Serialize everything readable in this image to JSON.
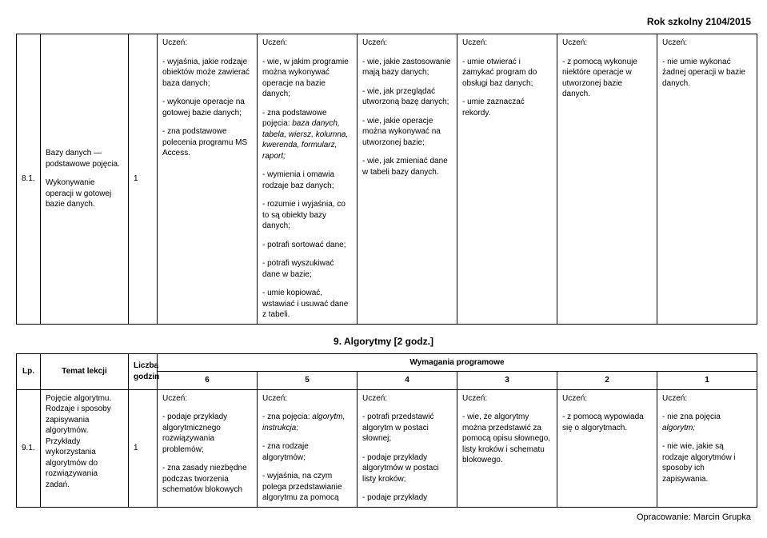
{
  "header": {
    "schoolYear": "Rok szkolny 2104/2015"
  },
  "labels": {
    "uczen": "Uczeń:",
    "lp": "Lp.",
    "temat": "Temat lekcji",
    "liczba": "Liczba godzin",
    "wymagania": "Wymagania programowe"
  },
  "section8": {
    "row": {
      "lp": "8.1.",
      "topic": "Bazy danych — podstawowe pojęcia.\nWykonywanie operacji w gotowej  bazie danych.",
      "hours": "1",
      "c6": {
        "p1": "- wyjaśnia, jakie rodzaje obiektów może zawierać baza danych;",
        "p2": "- wykonuje operacje na gotowej bazie danych;",
        "p3": "- zna podstawowe polecenia programu MS Access."
      },
      "c5": {
        "p1": "- wie, w jakim programie można wykonywać operacje na bazie danych;",
        "p2a": "- zna podstawowe pojęcia: ",
        "p2b": "baza danych, tabela, wiersz, kolumna, kwerenda, formularz, raport;",
        "p3": "- wymienia i omawia rodzaje baz danych;",
        "p4": "- rozumie i wyjaśnia, co to są obiekty bazy danych;",
        "p5": "- potrafi sortować dane;",
        "p6": "- potrafi wyszukiwać dane w bazie;",
        "p7": "- umie kopiować, wstawiać i usuwać dane z tabeli."
      },
      "c4": {
        "p1": "- wie, jakie zastosowanie mają bazy danych;",
        "p2": "- wie, jak przeglądać utworzoną bazę danych;",
        "p3": "- wie, jakie operacje można wykonywać na utworzonej bazie;",
        "p4": "- wie, jak zmieniać dane w tabeli bazy danych."
      },
      "c3": {
        "p1": "- umie otwierać i zamykać program do obsługi baz danych;",
        "p2": "- umie zaznaczać rekordy."
      },
      "c2": {
        "p1": "- z pomocą wykonuje niektóre operacje w utworzonej bazie danych."
      },
      "c1": {
        "p1": "- nie umie wykonać żadnej operacji w bazie danych."
      }
    }
  },
  "section9": {
    "title": "9. Algorytmy [2 godz.]",
    "gradeCols": {
      "g6": "6",
      "g5": "5",
      "g4": "4",
      "g3": "3",
      "g2": "2",
      "g1": "1"
    },
    "row": {
      "lp": "9.1.",
      "topic": "Pojęcie algorytmu. Rodzaje i sposoby zapisywania algorytmów. Przykłady wykorzystania algorytmów do rozwiązywania zadań.",
      "hours": "1",
      "c6": {
        "p1": "- podaje przykłady algorytmicznego rozwiązywania problemów;",
        "p2": "- zna zasady niezbędne podczas tworzenia schematów blokowych"
      },
      "c5": {
        "p1a": "- zna pojęcia: ",
        "p1b": "algorytm, instrukcja;",
        "p2": "- zna rodzaje algorytmów;",
        "p3": "- wyjaśnia, na czym polega przedstawianie algorytmu za pomocą"
      },
      "c4": {
        "p1": "- potrafi przedstawić algorytm w postaci słownej;",
        "p2": "- podaje przykłady algorytmów w postaci listy kroków;",
        "p3": "- podaje przykłady"
      },
      "c3": {
        "p1": "- wie, że algorytmy można przedstawić za pomocą opisu słownego, listy kroków i schematu blokowego."
      },
      "c2": {
        "p1": "- z pomocą wypowiada się o algorytmach."
      },
      "c1": {
        "p1a": "- nie zna pojęcia ",
        "p1b": "algorytm;",
        "p2": "- nie wie, jakie są rodzaje algorytmów i sposoby ich zapisywania."
      }
    }
  },
  "footer": {
    "credit": "Opracowanie: Marcin Grupka"
  }
}
